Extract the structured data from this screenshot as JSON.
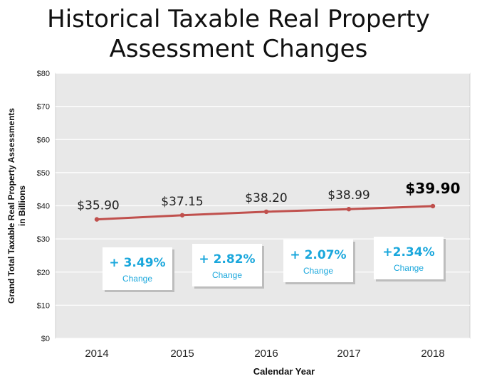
{
  "header": {
    "title_line1": "Historical Taxable Real Property",
    "title_line2": "Assessment Changes"
  },
  "colors": {
    "line": "#c0504d",
    "accent": "#1aa7dc",
    "plot_bg": "#e8e8e8"
  },
  "chart_data": {
    "type": "line",
    "x": [
      "2014",
      "2015",
      "2016",
      "2017",
      "2018"
    ],
    "values": [
      35.9,
      37.15,
      38.2,
      38.99,
      39.9
    ],
    "data_labels": [
      "$35.90",
      "$37.15",
      "$38.20",
      "$38.99",
      "$39.90"
    ],
    "ylim": [
      0,
      80
    ],
    "yticks": [
      0,
      10,
      20,
      30,
      40,
      50,
      60,
      70,
      80
    ],
    "ytick_labels": [
      "$0",
      "$10",
      "$20",
      "$30",
      "$40",
      "$50",
      "$60",
      "$70",
      "$80"
    ],
    "xlabel": "Calendar Year",
    "ylabel_line1": "Grand Total Taxable Real Property Assessments",
    "ylabel_line2": "in Billions",
    "grid": true,
    "changes": [
      {
        "pct": "+ 3.49%",
        "label": "Change"
      },
      {
        "pct": "+ 2.82%",
        "label": "Change"
      },
      {
        "pct": "+ 2.07%",
        "label": "Change"
      },
      {
        "pct": "+2.34%",
        "label": "Change"
      }
    ]
  }
}
